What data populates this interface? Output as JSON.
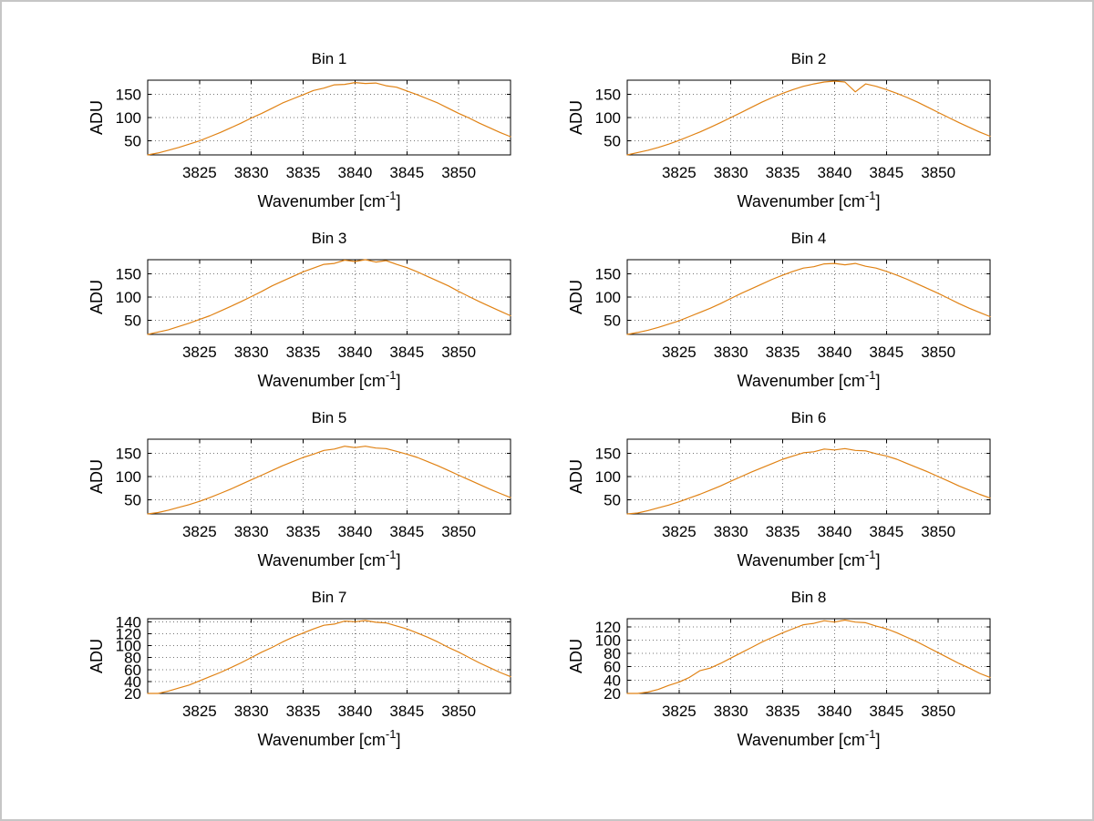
{
  "figure": {
    "background_color": "#ffffff",
    "border_color": "#c6c6c6"
  },
  "chart_data": {
    "type": "line",
    "layout": "4x2 grid of subplots",
    "grid": true,
    "legend": "none",
    "line_color": "#e08214",
    "x_label": "Wavenumber [cm^-1]",
    "x_label_parts": {
      "base": "Wavenumber [cm",
      "sup": "-1",
      "close": "]"
    },
    "y_label": "ADU",
    "xlim": [
      3820,
      3855
    ],
    "xticks": [
      3825,
      3830,
      3835,
      3840,
      3845,
      3850
    ],
    "x": [
      3820,
      3821,
      3822,
      3823,
      3824,
      3825,
      3826,
      3827,
      3828,
      3829,
      3830,
      3831,
      3832,
      3833,
      3834,
      3835,
      3836,
      3837,
      3838,
      3839,
      3840,
      3841,
      3842,
      3843,
      3844,
      3845,
      3846,
      3847,
      3848,
      3849,
      3850,
      3851,
      3852,
      3853,
      3854,
      3855
    ],
    "subplots": [
      {
        "title": "Bin 1",
        "ylim": [
          20,
          180
        ],
        "yticks": [
          50,
          100,
          150
        ],
        "values": [
          20,
          24,
          30,
          36,
          43,
          50,
          59,
          68,
          78,
          88,
          99,
          109,
          120,
          131,
          140,
          149,
          158,
          163,
          170,
          171,
          175,
          173,
          174,
          168,
          165,
          157,
          149,
          140,
          131,
          120,
          109,
          99,
          88,
          78,
          68,
          59
        ]
      },
      {
        "title": "Bin 2",
        "ylim": [
          20,
          180
        ],
        "yticks": [
          50,
          100,
          150
        ],
        "values": [
          20,
          25,
          30,
          36,
          43,
          51,
          60,
          69,
          79,
          89,
          100,
          111,
          122,
          133,
          143,
          152,
          160,
          167,
          172,
          176,
          178,
          176,
          155,
          172,
          167,
          160,
          152,
          143,
          133,
          122,
          111,
          100,
          89,
          79,
          69,
          60
        ]
      },
      {
        "title": "Bin 3",
        "ylim": [
          20,
          180
        ],
        "yticks": [
          50,
          100,
          150
        ],
        "values": [
          20,
          25,
          30,
          37,
          44,
          52,
          60,
          70,
          80,
          90,
          101,
          112,
          124,
          134,
          144,
          154,
          162,
          170,
          172,
          179,
          176,
          181,
          175,
          178,
          170,
          163,
          154,
          144,
          134,
          124,
          112,
          101,
          90,
          80,
          70,
          60
        ]
      },
      {
        "title": "Bin 4",
        "ylim": [
          20,
          180
        ],
        "yticks": [
          50,
          100,
          150
        ],
        "values": [
          19,
          24,
          29,
          35,
          42,
          49,
          58,
          67,
          76,
          86,
          97,
          108,
          118,
          128,
          138,
          147,
          155,
          162,
          165,
          171,
          172,
          169,
          172,
          166,
          162,
          155,
          147,
          138,
          128,
          118,
          108,
          97,
          86,
          76,
          67,
          58
        ]
      },
      {
        "title": "Bin 5",
        "ylim": [
          20,
          180
        ],
        "yticks": [
          50,
          100,
          150
        ],
        "values": [
          18,
          23,
          28,
          34,
          40,
          47,
          55,
          64,
          73,
          83,
          93,
          103,
          113,
          123,
          132,
          141,
          148,
          156,
          159,
          165,
          162,
          165,
          161,
          160,
          154,
          148,
          141,
          132,
          123,
          113,
          103,
          93,
          83,
          73,
          64,
          55
        ]
      },
      {
        "title": "Bin 6",
        "ylim": [
          20,
          180
        ],
        "yticks": [
          50,
          100,
          150
        ],
        "values": [
          18,
          22,
          27,
          33,
          39,
          46,
          54,
          62,
          71,
          80,
          90,
          100,
          110,
          119,
          128,
          137,
          144,
          151,
          153,
          159,
          157,
          160,
          156,
          155,
          149,
          144,
          137,
          128,
          119,
          110,
          100,
          90,
          80,
          71,
          62,
          54
        ]
      },
      {
        "title": "Bin 7",
        "ylim": [
          20,
          145
        ],
        "yticks": [
          20,
          40,
          60,
          80,
          100,
          120,
          140
        ],
        "values": [
          16,
          20,
          24,
          29,
          34,
          41,
          48,
          55,
          63,
          71,
          80,
          89,
          97,
          106,
          114,
          121,
          128,
          134,
          136,
          141,
          140,
          142,
          139,
          138,
          133,
          128,
          121,
          114,
          106,
          97,
          89,
          80,
          71,
          63,
          55,
          48
        ]
      },
      {
        "title": "Bin 8",
        "ylim": [
          20,
          132
        ],
        "yticks": [
          20,
          40,
          60,
          80,
          100,
          120
        ],
        "values": [
          15,
          18,
          22,
          26,
          32,
          37,
          44,
          54,
          58,
          65,
          73,
          81,
          89,
          97,
          104,
          111,
          117,
          123,
          125,
          129,
          127,
          130,
          127,
          126,
          121,
          117,
          111,
          104,
          97,
          89,
          81,
          73,
          65,
          58,
          50,
          44
        ]
      }
    ]
  }
}
